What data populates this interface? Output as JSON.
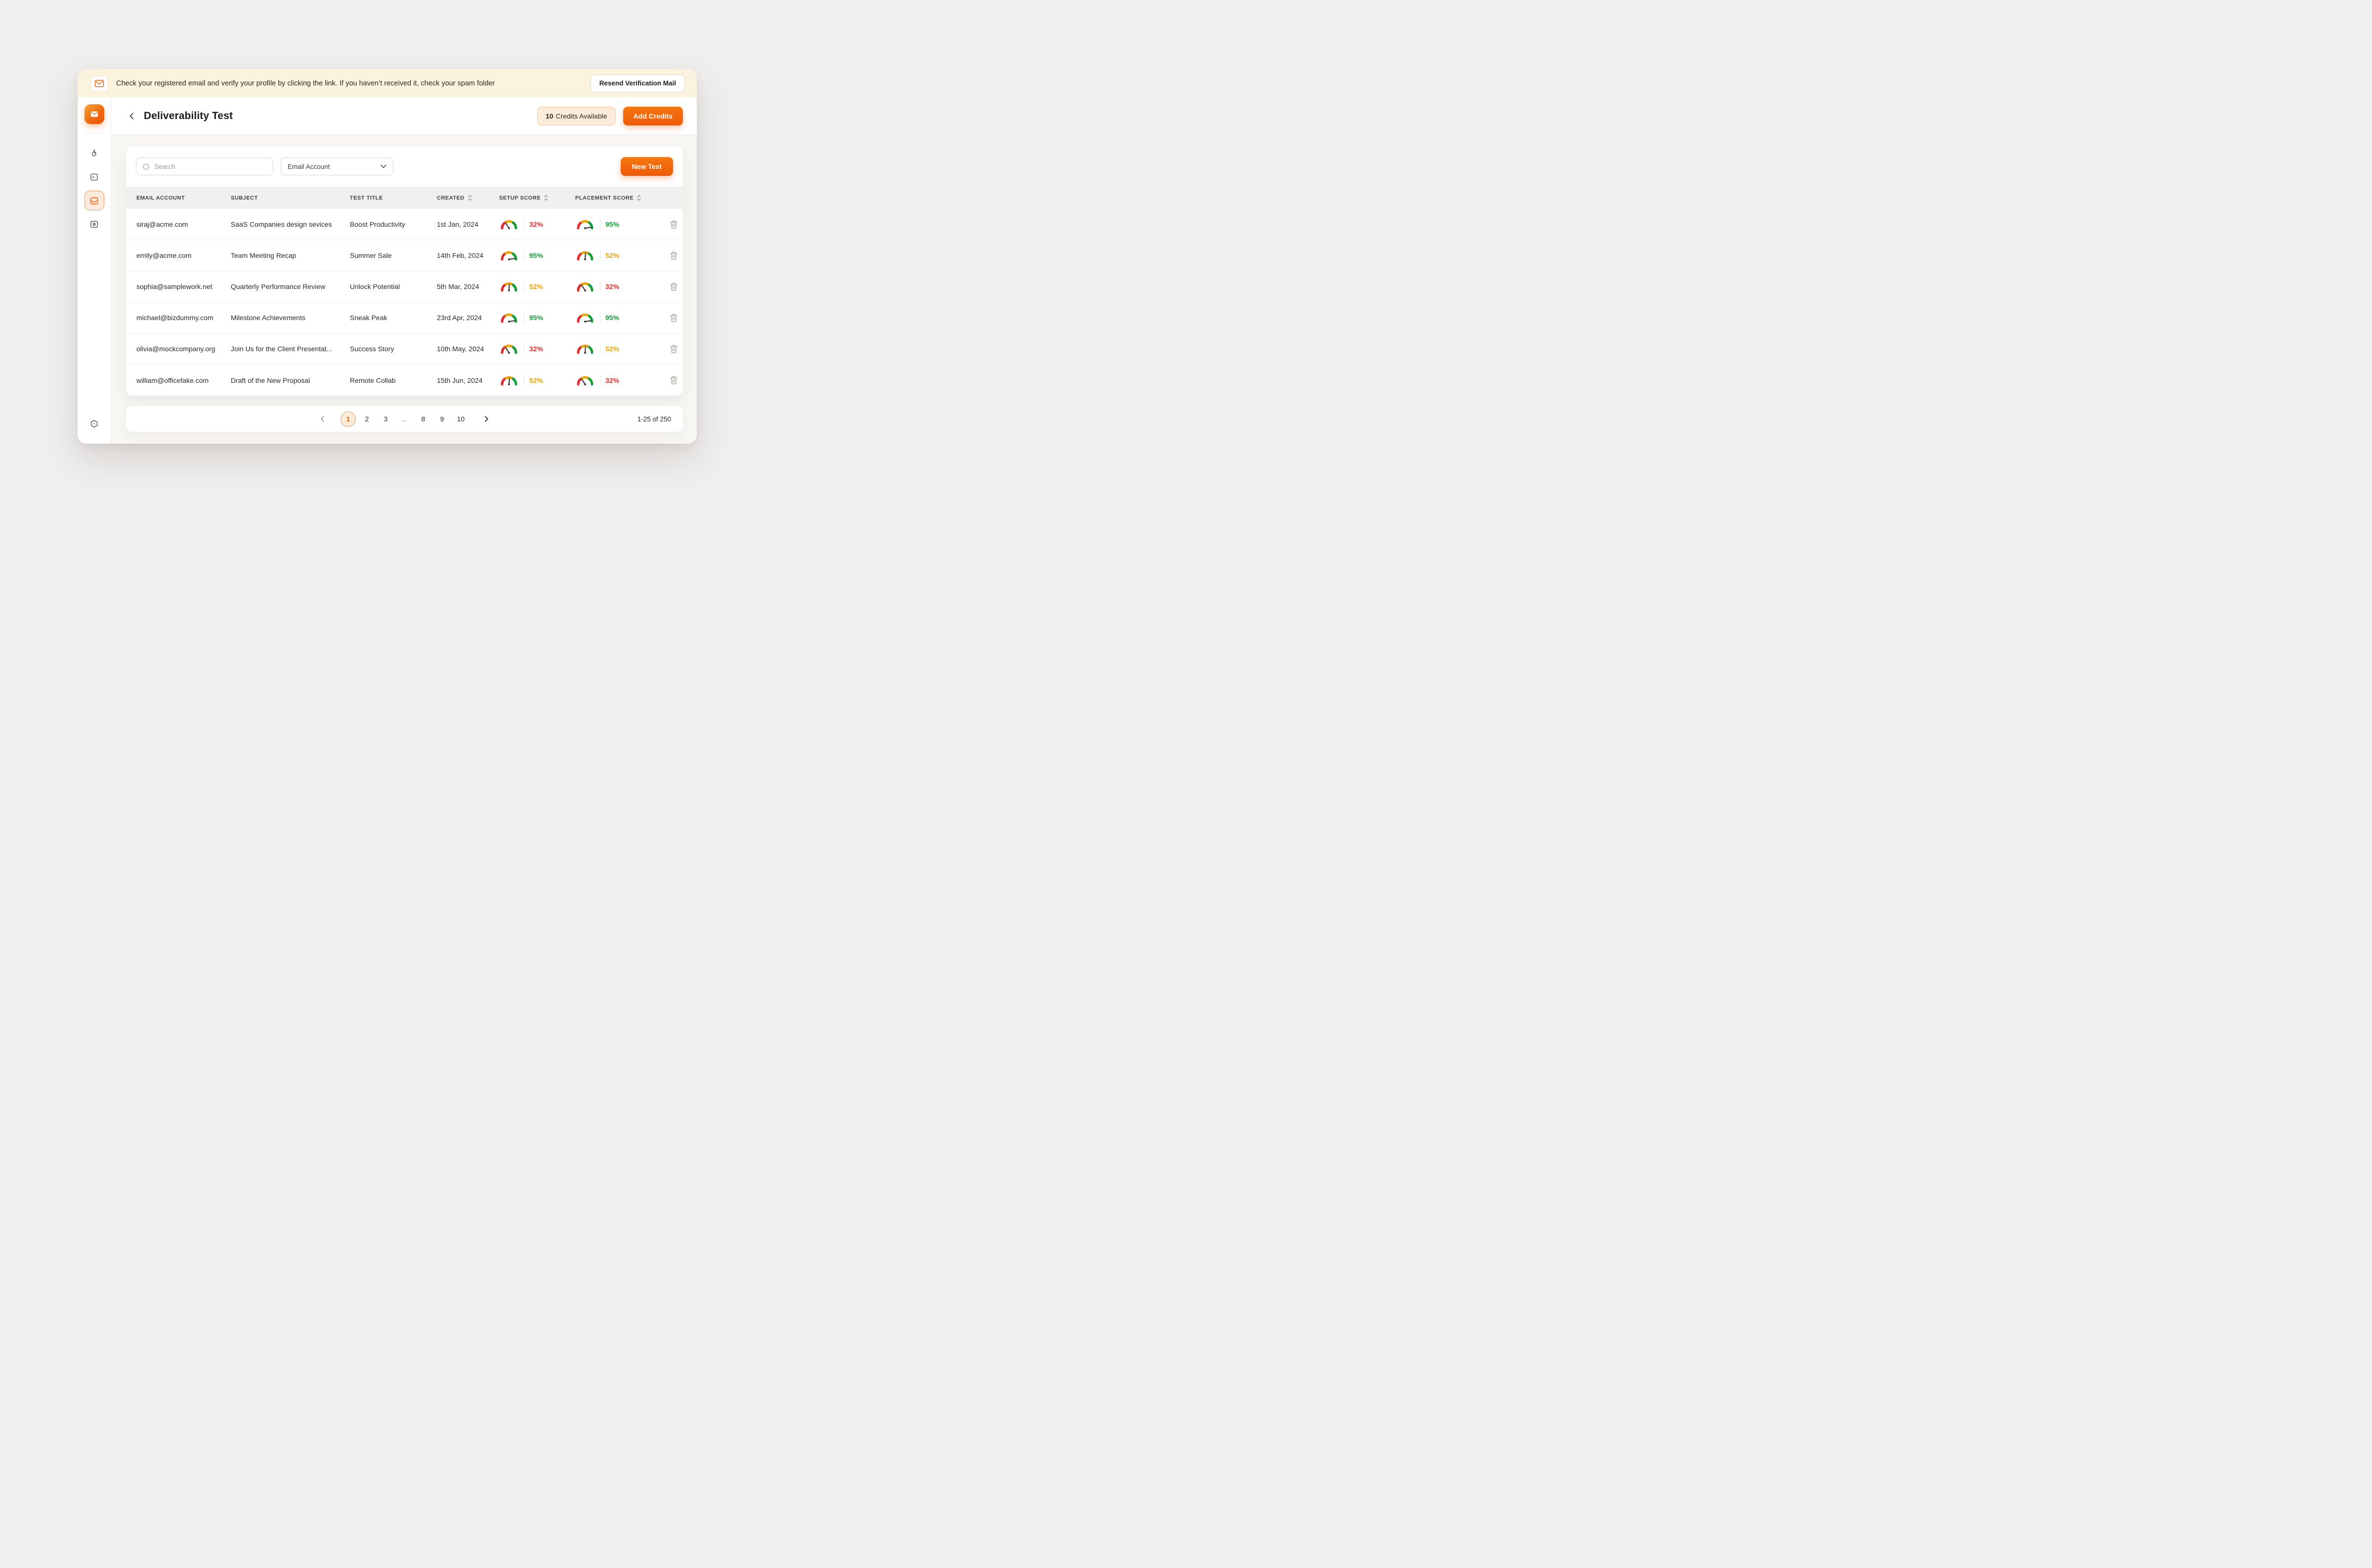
{
  "banner": {
    "icon": "mail-icon",
    "message": "Check your registered email and verify your profile by clicking the link. If you haven’t received it, check your spam folder",
    "button_label": "Resend Verification Mail"
  },
  "sidebar": {
    "logo_icon": "mail-logo-icon",
    "items": [
      {
        "icon": "flame-icon",
        "active": false
      },
      {
        "icon": "card-icon",
        "active": false
      },
      {
        "icon": "inbox-icon",
        "active": true
      },
      {
        "icon": "webcam-icon",
        "active": false
      }
    ],
    "bottom_icon": "settings-hexagon-icon"
  },
  "header": {
    "title": "Deliverability Test",
    "credits_count": "10",
    "credits_label": "Credits Available",
    "add_credits_label": "Add Credits"
  },
  "toolbar": {
    "search_placeholder": "Search",
    "filter_value": "Email Account",
    "new_test_label": "New Test"
  },
  "table": {
    "columns": [
      {
        "label": "EMAIL ACCOUNT",
        "sortable": false
      },
      {
        "label": "SUBJECT",
        "sortable": false
      },
      {
        "label": "TEST TITLE",
        "sortable": false
      },
      {
        "label": "CREATED",
        "sortable": true
      },
      {
        "label": "SETUP SCORE",
        "sortable": true
      },
      {
        "label": "PLACEMENT SCORE",
        "sortable": true
      }
    ],
    "rows": [
      {
        "email": "siraj@acme.com",
        "subject": "SaaS Companies design sevices",
        "test_title": "Boost Productivity",
        "created": "1st Jan, 2024",
        "setup": {
          "value": 32,
          "label": "32%",
          "level": "low"
        },
        "placement": {
          "value": 95,
          "label": "95%",
          "level": "high"
        }
      },
      {
        "email": "emily@acme.com",
        "subject": "Team Meeting Recap",
        "test_title": "Summer Sale",
        "created": "14th Feb, 2024",
        "setup": {
          "value": 95,
          "label": "95%",
          "level": "high"
        },
        "placement": {
          "value": 52,
          "label": "52%",
          "level": "mid"
        }
      },
      {
        "email": "sophia@samplework.net",
        "subject": "Quarterly Performance Review",
        "test_title": "Unlock Potential",
        "created": "5th Mar, 2024",
        "setup": {
          "value": 52,
          "label": "52%",
          "level": "mid"
        },
        "placement": {
          "value": 32,
          "label": "32%",
          "level": "low"
        }
      },
      {
        "email": "michael@bizdummy.com",
        "subject": "Milestone Achievements",
        "test_title": "Sneak Peak",
        "created": "23rd Apr, 2024",
        "setup": {
          "value": 95,
          "label": "95%",
          "level": "high"
        },
        "placement": {
          "value": 95,
          "label": "95%",
          "level": "high"
        }
      },
      {
        "email": "olivia@mockcompany.org",
        "subject": "Join Us for the Client Presentat...",
        "test_title": "Success Story",
        "created": "10th May, 2024",
        "setup": {
          "value": 32,
          "label": "32%",
          "level": "low"
        },
        "placement": {
          "value": 52,
          "label": "52%",
          "level": "mid"
        }
      },
      {
        "email": "william@officefake.com",
        "subject": "Draft of the New Proposal",
        "test_title": "Remote Collab",
        "created": "15th Jun, 2024",
        "setup": {
          "value": 52,
          "label": "52%",
          "level": "mid"
        },
        "placement": {
          "value": 32,
          "label": "32%",
          "level": "low"
        }
      }
    ]
  },
  "pagination": {
    "pages": [
      "1",
      "2",
      "3",
      "...",
      "8",
      "9",
      "10"
    ],
    "active_page": "1",
    "range_label": "1-25 of 250"
  },
  "colors": {
    "accent": "#ee5d0b",
    "low": "#e02d2d",
    "mid": "#e9a50b",
    "high": "#169d3b",
    "needle": "#3f3b35"
  }
}
